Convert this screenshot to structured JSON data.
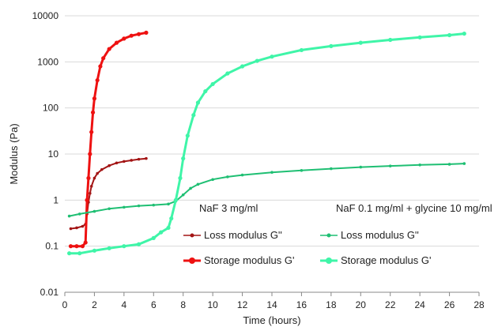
{
  "chart_data": {
    "type": "scatter",
    "xlabel": "Time (hours)",
    "ylabel": "Modulus (Pa)",
    "xlim": [
      0,
      28
    ],
    "ylim": [
      0.01,
      10000
    ],
    "yscale": "log",
    "x_ticks": [
      0,
      2,
      4,
      6,
      8,
      10,
      12,
      14,
      16,
      18,
      20,
      22,
      24,
      26,
      28
    ],
    "y_ticks": [
      0.01,
      0.1,
      1,
      10,
      100,
      1000,
      10000
    ],
    "y_tick_labels": [
      "0.01",
      "0.1",
      "1",
      "10",
      "100",
      "1000",
      "10000"
    ],
    "grid": "horizontal",
    "legend_groups": [
      {
        "title": "NaF 3 mg/ml",
        "entries": [
          0,
          1
        ]
      },
      {
        "title": "NaF 0.1 mg/ml + glycine 10 mg/ml",
        "entries": [
          2,
          3
        ]
      }
    ],
    "series": [
      {
        "name": "Loss modulus G''",
        "color": "#a31515",
        "marker_size": "small",
        "x": [
          0.4,
          0.8,
          1.2,
          1.4,
          1.5,
          1.6,
          1.7,
          1.8,
          2.0,
          2.2,
          2.5,
          3.0,
          3.5,
          4.0,
          4.5,
          5.0,
          5.5
        ],
        "y": [
          0.24,
          0.25,
          0.27,
          0.3,
          0.5,
          0.9,
          1.4,
          2.0,
          3.0,
          3.8,
          4.6,
          5.6,
          6.4,
          6.9,
          7.3,
          7.7,
          8.0
        ]
      },
      {
        "name": "Storage modulus G'",
        "color": "#ee1111",
        "marker_size": "large",
        "x": [
          0.4,
          0.8,
          1.2,
          1.4,
          1.5,
          1.6,
          1.7,
          1.8,
          1.9,
          2.0,
          2.2,
          2.4,
          2.6,
          3.0,
          3.5,
          4.0,
          4.5,
          5.0,
          5.5
        ],
        "y": [
          0.1,
          0.1,
          0.1,
          0.12,
          1.0,
          3.0,
          10,
          30,
          80,
          160,
          400,
          800,
          1200,
          1900,
          2600,
          3200,
          3700,
          4000,
          4300
        ]
      },
      {
        "name": "Loss modulus G''",
        "color": "#1fbf73",
        "marker_size": "small",
        "x": [
          0.3,
          1,
          2,
          3,
          4,
          5,
          6,
          7,
          7.5,
          8,
          8.5,
          9,
          10,
          11,
          12,
          14,
          16,
          18,
          20,
          22,
          24,
          26,
          27
        ],
        "y": [
          0.45,
          0.5,
          0.57,
          0.65,
          0.7,
          0.75,
          0.78,
          0.82,
          0.95,
          1.3,
          1.8,
          2.2,
          2.8,
          3.2,
          3.5,
          4.0,
          4.4,
          4.8,
          5.2,
          5.5,
          5.8,
          6.0,
          6.2
        ]
      },
      {
        "name": "Storage modulus G'",
        "color": "#3ff5a8",
        "marker_size": "large",
        "x": [
          0.3,
          1,
          2,
          3,
          4,
          5,
          6,
          6.5,
          7,
          7.2,
          7.5,
          7.8,
          8.0,
          8.3,
          8.7,
          9,
          9.5,
          10,
          11,
          12,
          13,
          14,
          16,
          18,
          20,
          22,
          24,
          26,
          27
        ],
        "y": [
          0.07,
          0.07,
          0.08,
          0.09,
          0.1,
          0.11,
          0.15,
          0.2,
          0.25,
          0.4,
          1.0,
          3.0,
          8,
          25,
          70,
          130,
          230,
          330,
          560,
          800,
          1050,
          1300,
          1800,
          2200,
          2600,
          3000,
          3400,
          3800,
          4100
        ]
      }
    ]
  }
}
